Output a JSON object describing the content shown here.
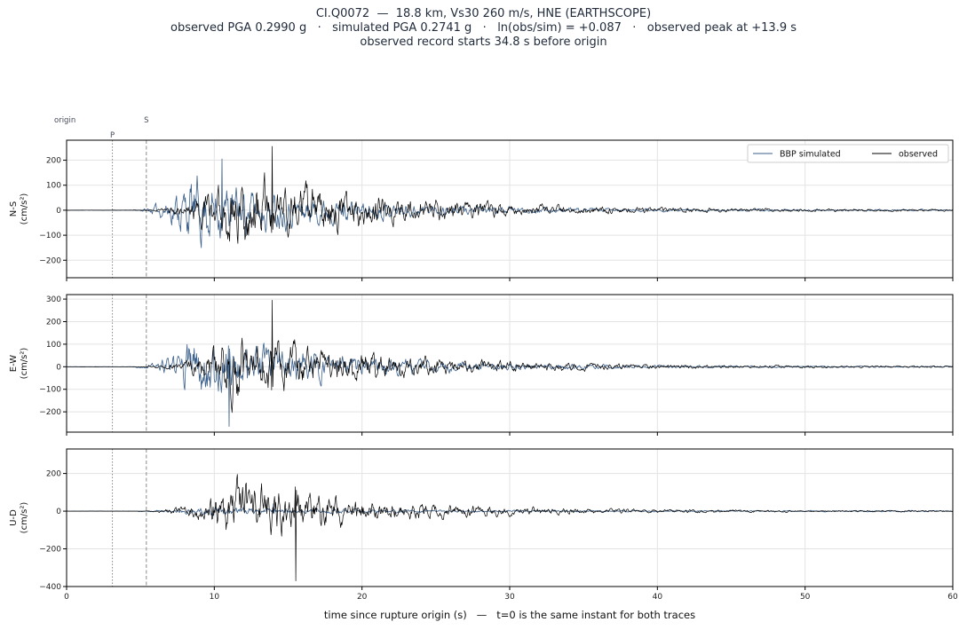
{
  "header": {
    "line1": "CI.Q0072  —  18.8 km, Vs30 260 m/s, HNE (EARTHSCOPE)",
    "line2": "observed PGA 0.2990 g   ·   simulated PGA 0.2741 g   ·   ln(obs/sim) = +0.087   ·   observed peak at +13.9 s",
    "line3": "observed record starts 34.8 s before origin"
  },
  "markers": {
    "origin": "origin",
    "p": "P",
    "s": "S",
    "p_time": 3.1,
    "s_time": 5.4
  },
  "colors": {
    "simulated": "#3a5f8a",
    "observed": "#000000",
    "grid": "#e3e3e3"
  },
  "chart_data": {
    "type": "line",
    "xlabel": "time since rupture origin (s)   —   t=0 is the same instant for both traces",
    "xlim": [
      0,
      60
    ],
    "xticks": [
      0,
      10,
      20,
      30,
      40,
      50,
      60
    ],
    "legend": {
      "placement": "top-right",
      "entries": [
        "BBP simulated",
        "observed"
      ]
    },
    "series": [
      {
        "name": "BBP simulated"
      },
      {
        "name": "observed"
      }
    ],
    "panels": [
      {
        "component": "N-S",
        "ylabel_line1": "N-S",
        "ylabel_line2": "(cm/s²)",
        "ylim": [
          -270,
          280
        ],
        "yticks": [
          -200,
          -100,
          0,
          100,
          200
        ],
        "simulated": {
          "onset": 4.5,
          "peak_time": 10.5,
          "peak": 205,
          "env_peak": 150,
          "rise": 4.0,
          "decay": 8.5,
          "seed": 11
        },
        "observed": {
          "onset": 5.4,
          "peak_time": 13.9,
          "peak": 255,
          "env_peak": 175,
          "rise": 6.0,
          "decay": 9.5,
          "seed": 23
        }
      },
      {
        "component": "E-W",
        "ylabel_line1": "E-W",
        "ylabel_line2": "(cm/s²)",
        "ylim": [
          -290,
          320
        ],
        "yticks": [
          -200,
          -100,
          0,
          100,
          200,
          300
        ],
        "simulated": {
          "onset": 4.5,
          "peak_time": 11.0,
          "peak": -265,
          "env_peak": 160,
          "rise": 4.5,
          "decay": 9.0,
          "seed": 37
        },
        "observed": {
          "onset": 5.4,
          "peak_time": 13.9,
          "peak": 295,
          "env_peak": 165,
          "rise": 6.0,
          "decay": 9.5,
          "seed": 41
        }
      },
      {
        "component": "U-D",
        "ylabel_line1": "U-D",
        "ylabel_line2": "(cm/s²)",
        "ylim": [
          -400,
          330
        ],
        "yticks": [
          -400,
          -200,
          0,
          200
        ],
        "simulated": {
          "onset": 4.8,
          "peak_time": 14.0,
          "peak": 40,
          "env_peak": 25,
          "rise": 5.0,
          "decay": 9.0,
          "seed": 53
        },
        "observed": {
          "onset": 5.4,
          "peak_time": 15.5,
          "peak": -370,
          "env_peak": 175,
          "rise": 6.0,
          "decay": 9.0,
          "seed": 67
        }
      }
    ]
  }
}
